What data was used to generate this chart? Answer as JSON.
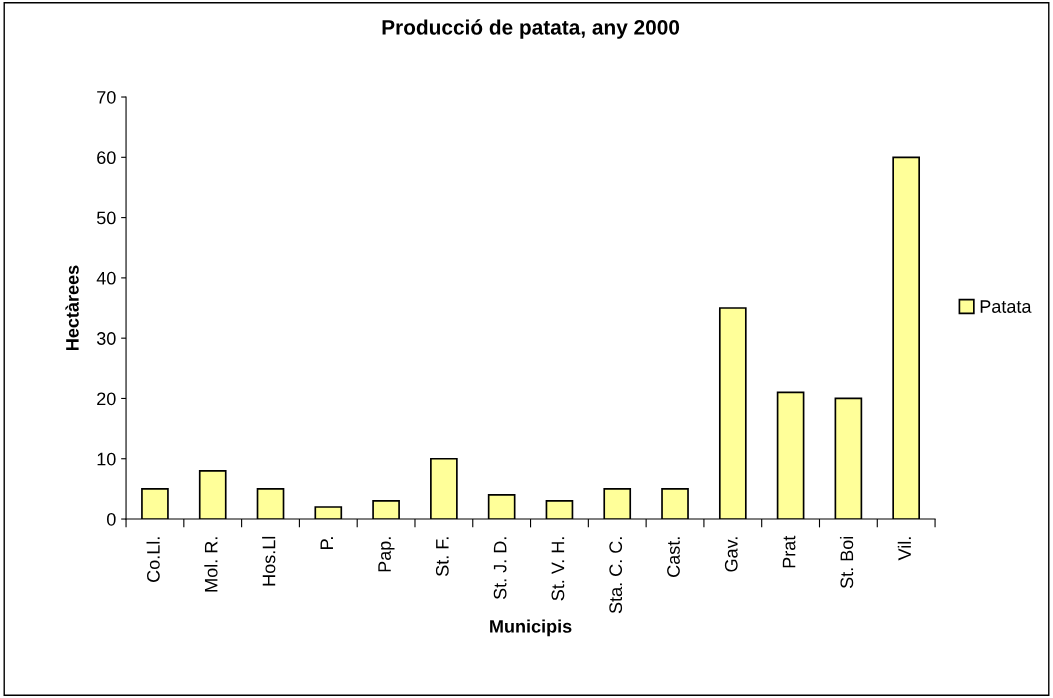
{
  "chart_data": {
    "type": "bar",
    "title": "Producció de patata, any 2000",
    "xlabel": "Municipis",
    "ylabel": "Hectàrees",
    "categories": [
      "Co.Ll.",
      "Mol. R.",
      "Hos.Ll",
      "P.",
      "Pap.",
      "St. F.",
      "St. J. D.",
      "St. V. H.",
      "Sta. C. C.",
      "Cast.",
      "Gav.",
      "Prat",
      "St. Boi",
      "Vil."
    ],
    "series": [
      {
        "name": "Patata",
        "color": "#ffff99",
        "values": [
          5,
          8,
          5,
          2,
          3,
          10,
          4,
          3,
          5,
          5,
          35,
          21,
          20,
          60
        ]
      }
    ],
    "ylim": [
      0,
      70
    ],
    "yticks": [
      0,
      10,
      20,
      30,
      40,
      50,
      60,
      70
    ],
    "grid": false,
    "legend": "right"
  }
}
